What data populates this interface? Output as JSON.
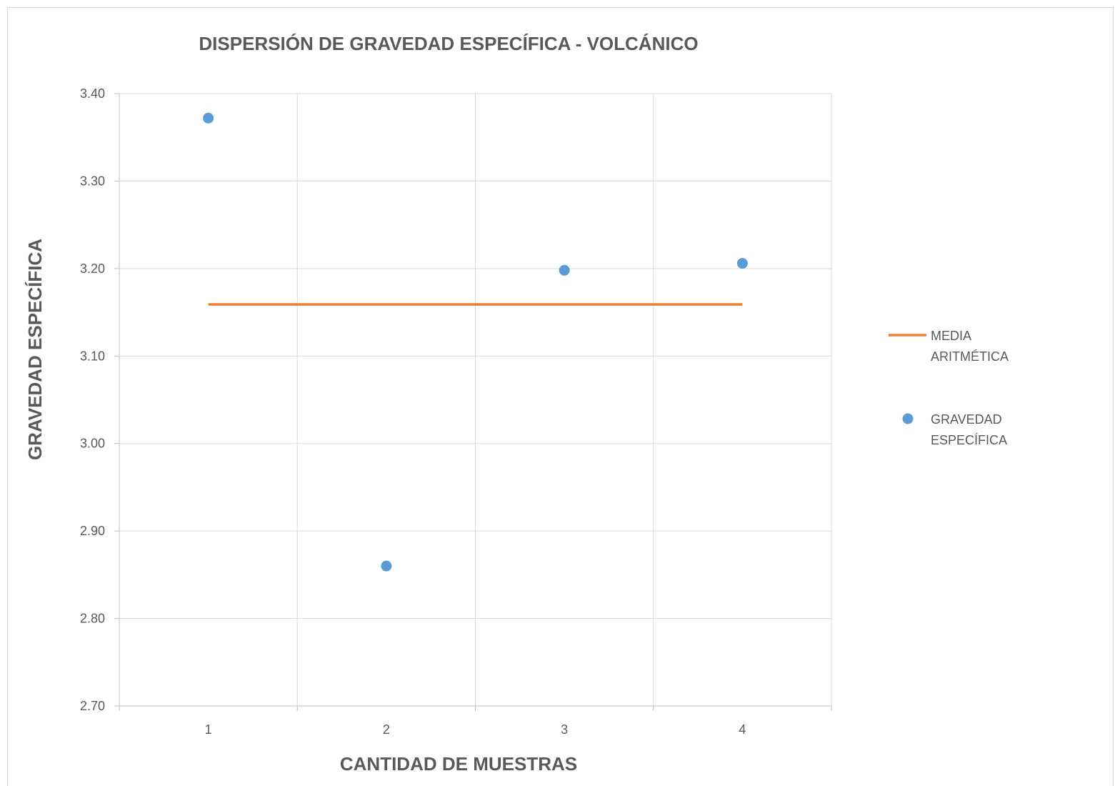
{
  "chart_data": {
    "type": "scatter",
    "title": "DISPERSIÓN DE GRAVEDAD ESPECÍFICA - VOLCÁNICO",
    "xlabel": "CANTIDAD DE MUESTRAS",
    "ylabel": "GRAVEDAD ESPECÍFICA",
    "xlim": [
      0.5,
      4.5
    ],
    "ylim": [
      2.7,
      3.4
    ],
    "x_ticks": [
      "1",
      "2",
      "3",
      "4"
    ],
    "y_ticks": [
      "2.70",
      "2.80",
      "2.90",
      "3.00",
      "3.10",
      "3.20",
      "3.30",
      "3.40"
    ],
    "grid": true,
    "legend_position": "right",
    "series": [
      {
        "name_lines": [
          "MEDIA",
          "ARITMÉTICA"
        ],
        "kind": "line",
        "color": "#ed7d31",
        "x": [
          1,
          4
        ],
        "y": [
          3.159,
          3.159
        ]
      },
      {
        "name_lines": [
          "GRAVEDAD",
          "ESPECÍFICA"
        ],
        "kind": "scatter",
        "color": "#5b9bd5",
        "x": [
          1,
          2,
          3,
          4
        ],
        "y": [
          3.372,
          2.86,
          3.198,
          3.206
        ]
      }
    ]
  }
}
